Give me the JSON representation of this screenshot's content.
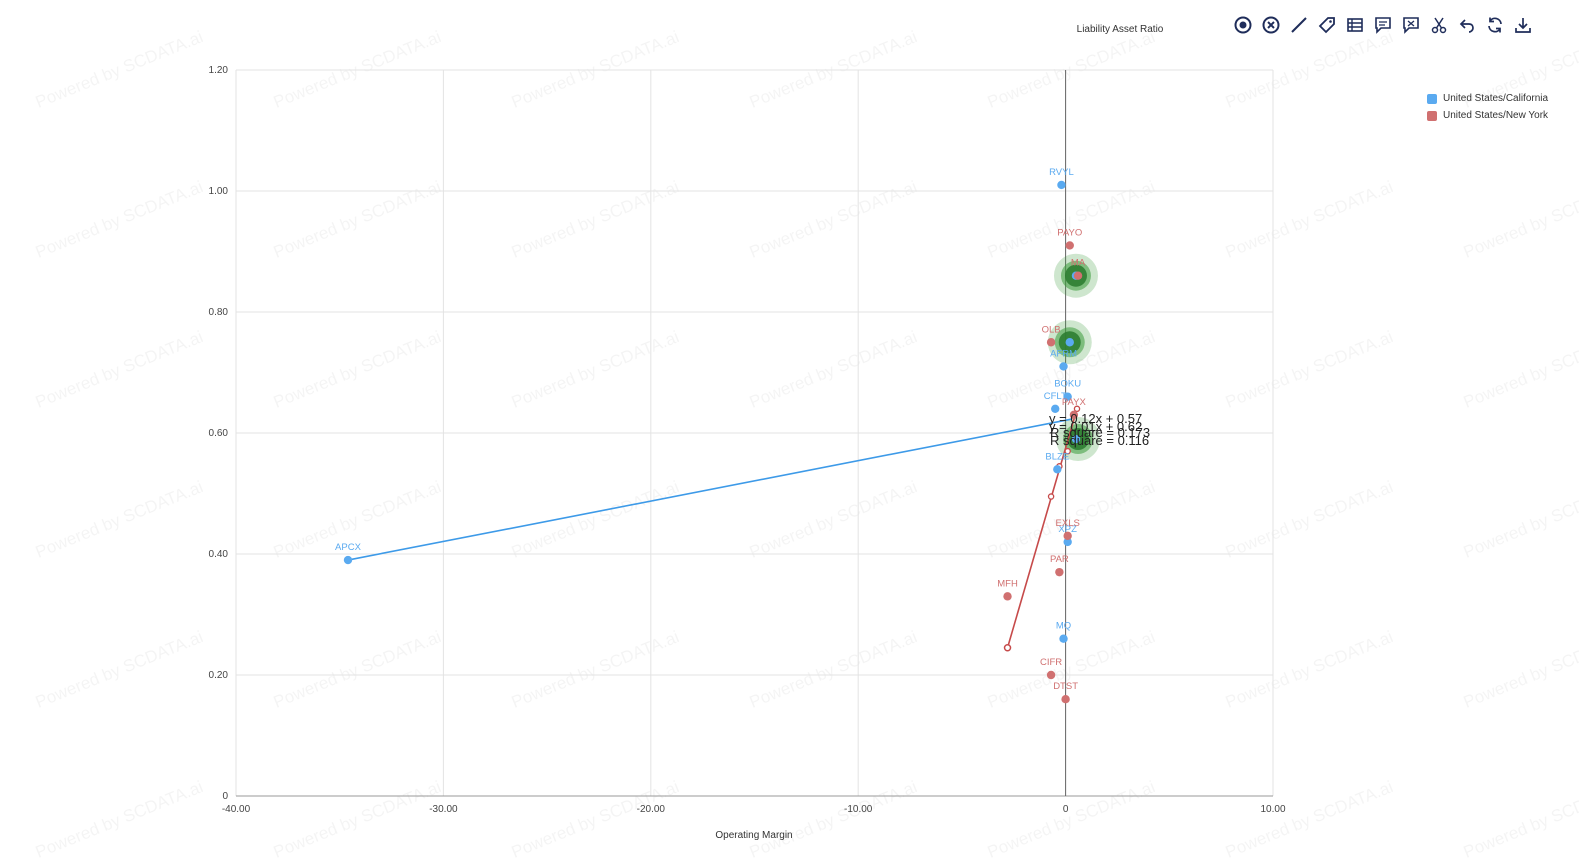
{
  "watermark": "Powered by SCDATA.ai",
  "toolbar": {
    "icons": [
      "target-icon",
      "clear-icon",
      "line-icon",
      "tag-icon",
      "table-icon",
      "comment-icon",
      "flag-icon",
      "scissors-icon",
      "undo-icon",
      "refresh-icon",
      "download-icon"
    ],
    "color": "#1f2d5a"
  },
  "chart_data": {
    "type": "scatter",
    "title": "",
    "xlabel": "Operating Margin",
    "ylabel": "Liability Asset Ratio",
    "xlim": [
      -40,
      10
    ],
    "ylim": [
      0,
      1.2
    ],
    "x_ticks": [
      -40,
      -30,
      -20,
      -10,
      0,
      10
    ],
    "x_tick_labels": [
      "-40.00",
      "-30.00",
      "-20.00",
      "-10.00",
      "0",
      "10.00"
    ],
    "y_ticks": [
      0,
      0.2,
      0.4,
      0.6,
      0.8,
      1.0,
      1.2
    ],
    "y_tick_labels": [
      "0",
      "0.20",
      "0.40",
      "0.60",
      "0.80",
      "1.00",
      "1.20"
    ],
    "grid": true,
    "legend_position": "top-right",
    "series": [
      {
        "name": "United States/California",
        "color": "#5aaaf0",
        "points": [
          {
            "label": "RVYL",
            "x": -0.2,
            "y": 1.01
          },
          {
            "label": "APCX",
            "x": -34.6,
            "y": 0.39
          },
          {
            "label": "BOKU",
            "x": 0.1,
            "y": 0.66
          },
          {
            "label": "CFLT",
            "x": -0.5,
            "y": 0.64
          },
          {
            "label": "BLZE",
            "x": -0.4,
            "y": 0.54
          },
          {
            "label": "AFRM",
            "x": -0.1,
            "y": 0.71
          },
          {
            "label": "XPZ",
            "x": 0.1,
            "y": 0.42
          },
          {
            "label": "MQ",
            "x": -0.1,
            "y": 0.26
          },
          {
            "label": "",
            "x": 0.2,
            "y": 0.75
          },
          {
            "label": "",
            "x": 0.5,
            "y": 0.86
          },
          {
            "label": "",
            "x": 0.5,
            "y": 0.59
          }
        ],
        "regression": {
          "equation": "y = 0.01x + 0.62",
          "r_squared": "R square = 0.116"
        }
      },
      {
        "name": "United States/New York",
        "color": "#d07070",
        "points": [
          {
            "label": "PAYO",
            "x": 0.2,
            "y": 0.91
          },
          {
            "label": "MA",
            "x": 0.6,
            "y": 0.86
          },
          {
            "label": "OLB",
            "x": -0.7,
            "y": 0.75
          },
          {
            "label": "PAYX",
            "x": 0.4,
            "y": 0.63
          },
          {
            "label": "EXLS",
            "x": 0.1,
            "y": 0.43
          },
          {
            "label": "PAR",
            "x": -0.3,
            "y": 0.37
          },
          {
            "label": "MFH",
            "x": -2.8,
            "y": 0.33
          },
          {
            "label": "CIFR",
            "x": -0.7,
            "y": 0.2
          },
          {
            "label": "DTST",
            "x": 0.0,
            "y": 0.16
          }
        ],
        "regression": {
          "equation": "y = 0.12x + 0.57",
          "r_squared": "R square = 0.173"
        }
      }
    ],
    "trendlines": [
      {
        "series": "United States/California",
        "from": {
          "x": -34.6,
          "y": 0.39
        },
        "to": {
          "x": 0.3,
          "y": 0.623
        }
      },
      {
        "series": "United States/New York",
        "from": {
          "x": -2.8,
          "y": 0.245
        },
        "to": {
          "x": 0.55,
          "y": 0.64
        }
      }
    ],
    "highlight_clusters": [
      {
        "x": 0.5,
        "y": 0.86,
        "color": "#3a9a3a"
      },
      {
        "x": 0.2,
        "y": 0.75,
        "color": "#3a9a3a"
      },
      {
        "x": 0.6,
        "y": 0.59,
        "color": "#3a9a3a"
      }
    ]
  }
}
